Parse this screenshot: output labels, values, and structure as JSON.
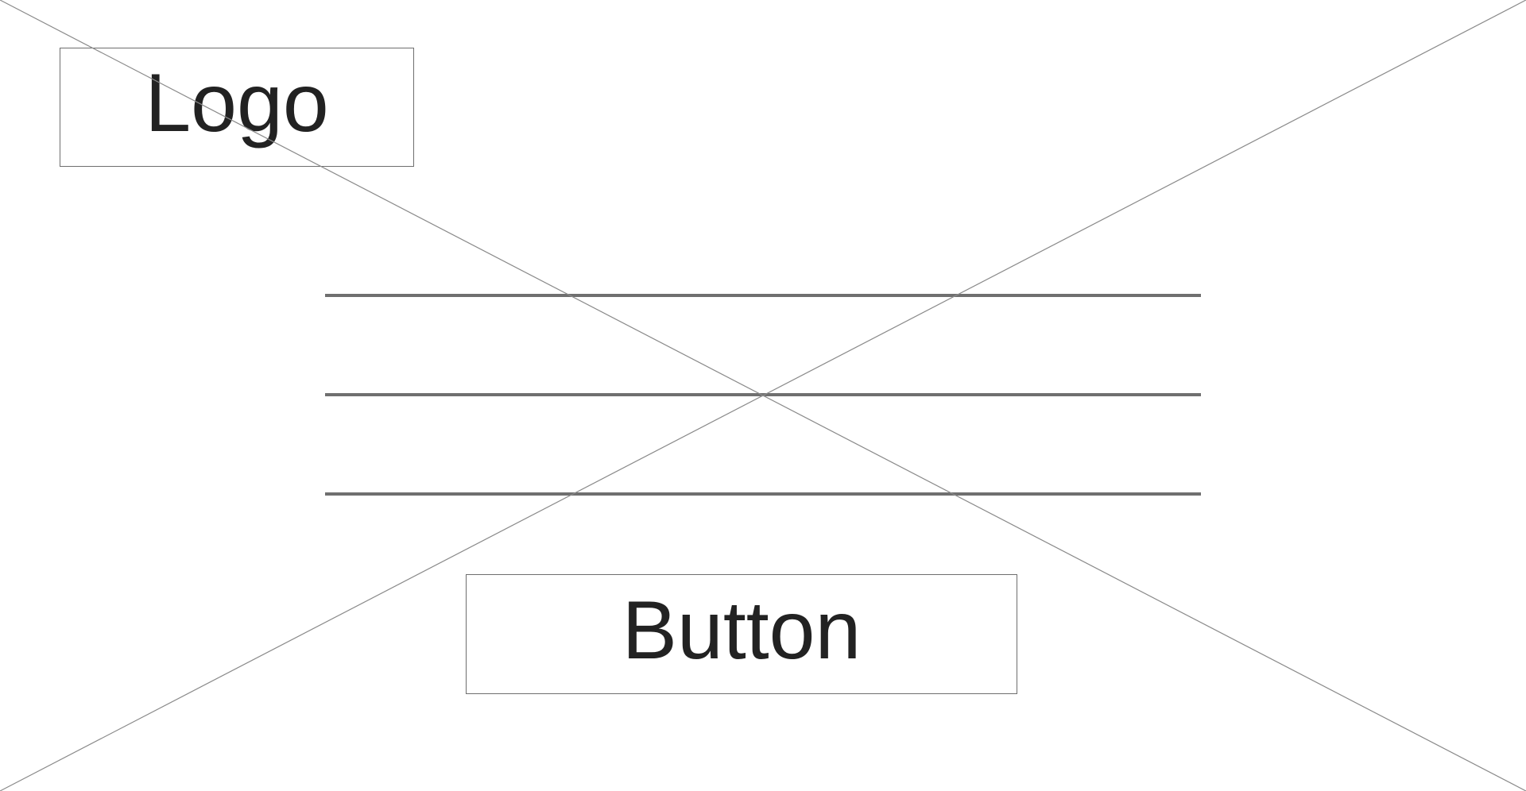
{
  "header": {
    "logo_text": "Logo"
  },
  "content": {
    "text_placeholder_lines": 3
  },
  "cta": {
    "button_label": "Button"
  },
  "colors": {
    "background": "#ffffff",
    "outline": "#6e6e6e",
    "text": "#222222",
    "placeholder_line": "#6f6f6f"
  }
}
